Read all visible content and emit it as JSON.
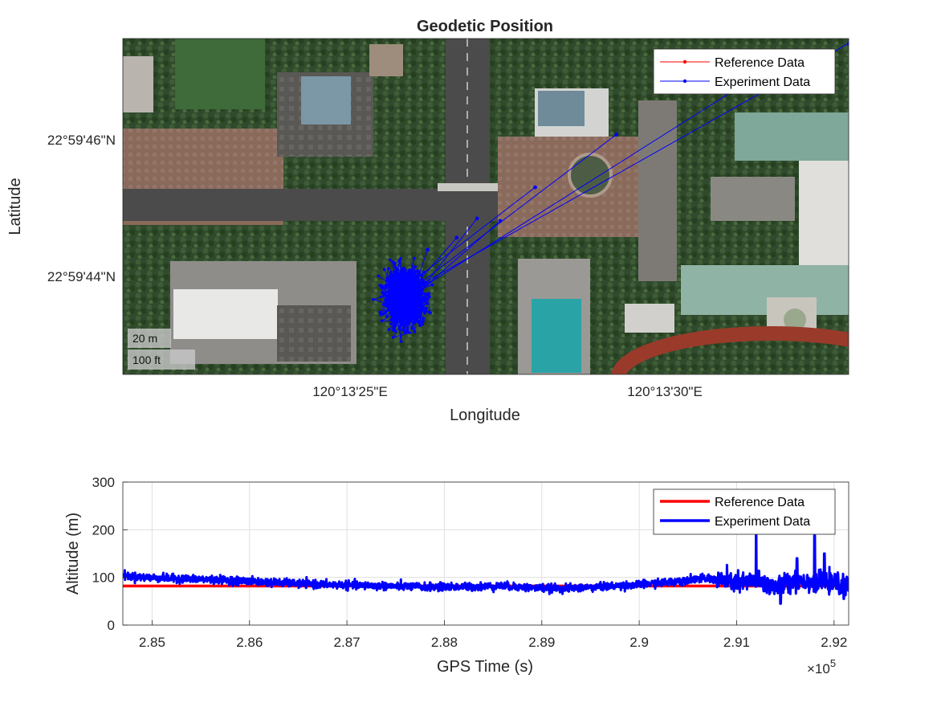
{
  "colors": {
    "reference": "#ff0000",
    "experiment": "#0000ff",
    "grid": "#dfdfdf",
    "axis": "#262626"
  },
  "icons": [
    "satellite-basemap"
  ],
  "chart_data": [
    {
      "type": "scatter",
      "title": "Geodetic Position",
      "xlabel": "Longitude",
      "ylabel": "Latitude",
      "basemap": "satellite imagery",
      "x_ticks": [
        "120°13'25\"E",
        "120°13'30\"E"
      ],
      "y_ticks": [
        "22°59'46\"N",
        "22°59'44\"N"
      ],
      "xlim_deg": [
        120.2225,
        120.225
      ],
      "ylim_deg": [
        22.99525,
        22.99665
      ],
      "legend": {
        "position": "top-right",
        "entries": [
          "Reference Data",
          "Experiment Data"
        ]
      },
      "scale_bar": [
        "20 m",
        "100 ft"
      ],
      "series": [
        {
          "name": "Reference Data",
          "note": "hidden beneath experiment cluster",
          "lon": [
            120.22345
          ],
          "lat": [
            22.9956
          ]
        },
        {
          "name": "Experiment Data",
          "cluster_center": [
            120.22347,
            22.99557
          ],
          "cluster_spread": [
            6e-05,
            0.0001
          ],
          "outliers": {
            "lon": [
              120.22355,
              120.22365,
              120.22372,
              120.2238,
              120.22392,
              120.2242,
              120.2246,
              120.225
            ],
            "lat": [
              22.99577,
              22.99582,
              22.9959,
              22.99589,
              22.99603,
              22.99625,
              22.99643,
              22.99663
            ]
          }
        }
      ]
    },
    {
      "type": "line",
      "title": "",
      "xlabel": "GPS Time (s)",
      "ylabel": "Altitude (m)",
      "x_exponent": "×10",
      "x_exponent_power": "5",
      "xlim": [
        2.847,
        2.9215
      ],
      "ylim": [
        0,
        300
      ],
      "x_ticks": [
        "2.85",
        "2.86",
        "2.87",
        "2.88",
        "2.89",
        "2.9",
        "2.91",
        "2.92"
      ],
      "y_ticks": [
        "0",
        "100",
        "200",
        "300"
      ],
      "grid": true,
      "legend": {
        "position": "top-right",
        "entries": [
          "Reference Data",
          "Experiment Data"
        ]
      },
      "series": [
        {
          "name": "Reference Data",
          "x": [
            2.847,
            2.9215
          ],
          "y": [
            82,
            82
          ]
        },
        {
          "name": "Experiment Data",
          "x": [
            2.847,
            2.849,
            2.852,
            2.855,
            2.858,
            2.862,
            2.866,
            2.87,
            2.874,
            2.878,
            2.882,
            2.886,
            2.889,
            2.892,
            2.896,
            2.9,
            2.903,
            2.906,
            2.908,
            2.91,
            2.912,
            2.914,
            2.916,
            2.918,
            2.92,
            2.9215
          ],
          "y": [
            104,
            100,
            98,
            96,
            94,
            90,
            86,
            84,
            82,
            80,
            80,
            82,
            78,
            77,
            80,
            85,
            90,
            98,
            95,
            88,
            92,
            80,
            95,
            90,
            88,
            80
          ],
          "noise": 8,
          "spikes": [
            {
              "x": 2.912,
              "y": 190
            },
            {
              "x": 2.918,
              "y": 188
            },
            {
              "x": 2.919,
              "y": 150
            },
            {
              "x": 2.9162,
              "y": 140
            },
            {
              "x": 2.9145,
              "y": 45
            },
            {
              "x": 2.921,
              "y": 55
            }
          ]
        }
      ]
    }
  ]
}
